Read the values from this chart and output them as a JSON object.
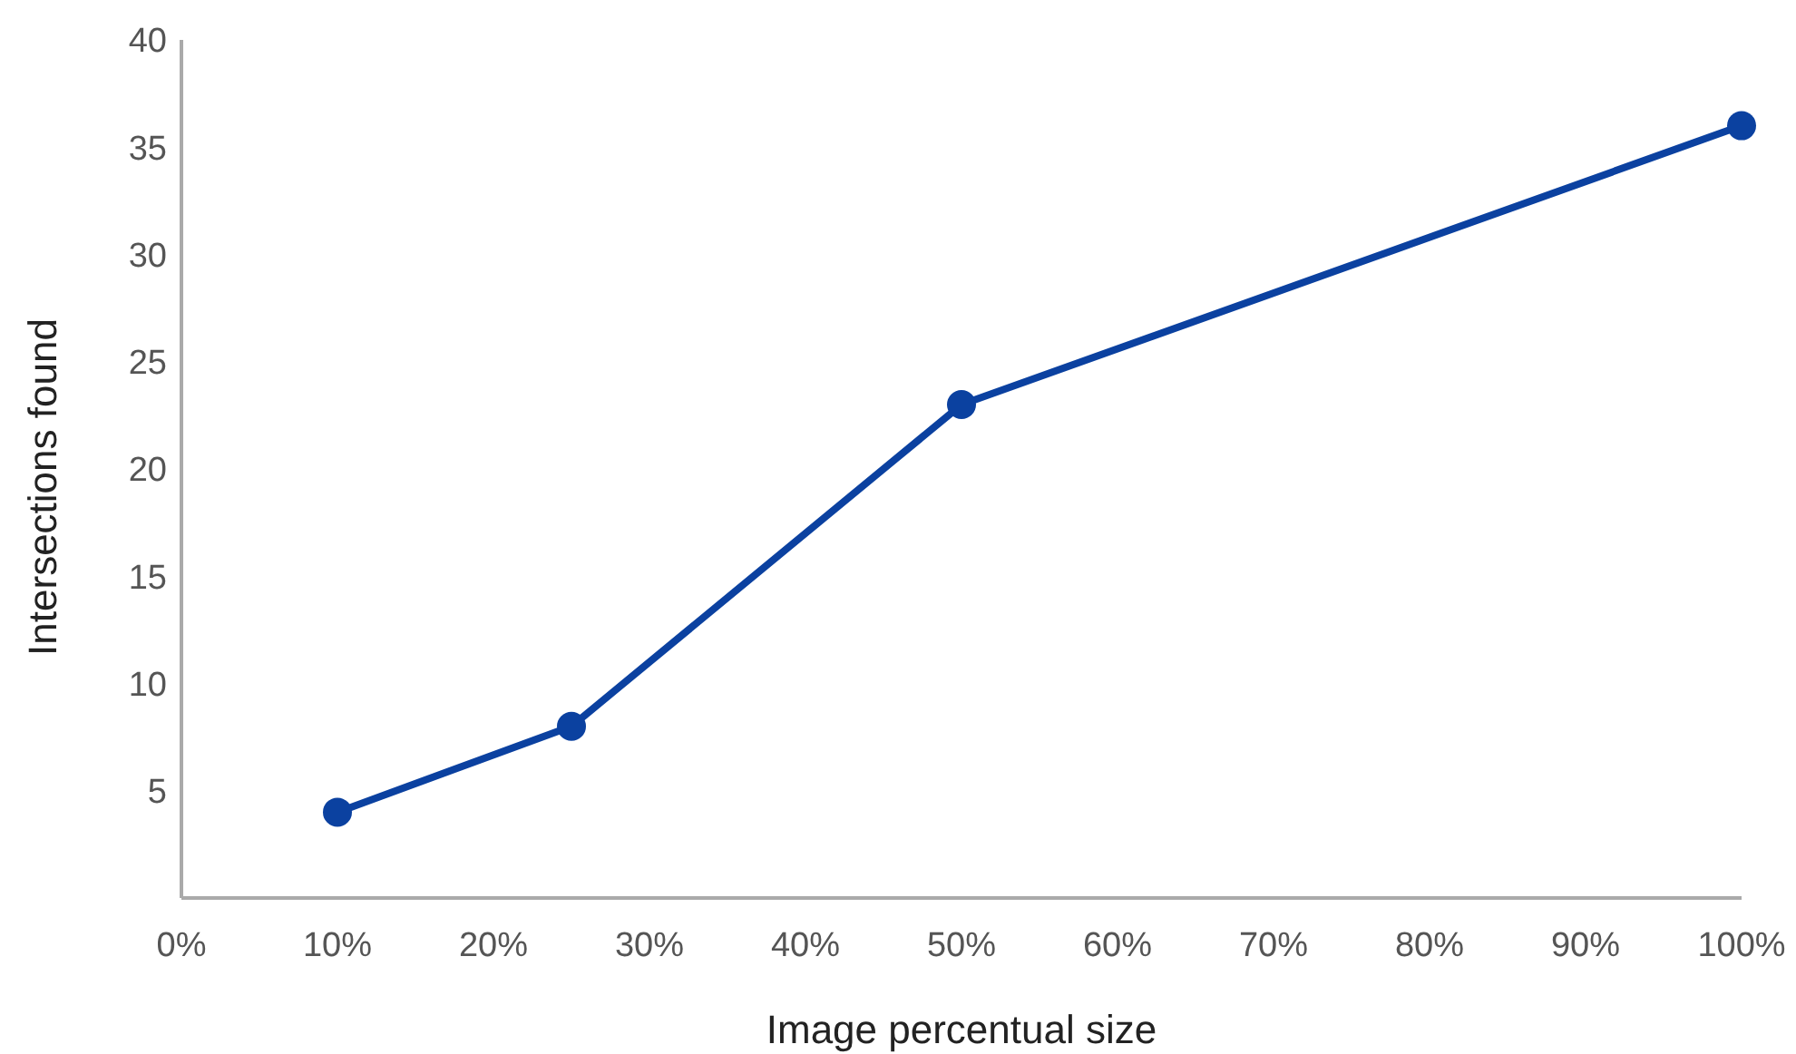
{
  "chart_data": {
    "type": "line",
    "xlabel": "Image percentual size",
    "ylabel": "Intersections found",
    "x": [
      10,
      25,
      50,
      100
    ],
    "series": [
      {
        "color": "#0b41a0",
        "values": [
          4,
          8,
          23,
          36
        ]
      }
    ],
    "xlim": [
      0,
      100
    ],
    "xticks": [
      {
        "value": 0,
        "label": "0%"
      },
      {
        "value": 10,
        "label": "10%"
      },
      {
        "value": 20,
        "label": "20%"
      },
      {
        "value": 30,
        "label": "30%"
      },
      {
        "value": 40,
        "label": "40%"
      },
      {
        "value": 50,
        "label": "50%"
      },
      {
        "value": 60,
        "label": "60%"
      },
      {
        "value": 70,
        "label": "70%"
      },
      {
        "value": 80,
        "label": "80%"
      },
      {
        "value": 90,
        "label": "90%"
      },
      {
        "value": 100,
        "label": "100%"
      }
    ],
    "ylim": [
      0,
      40
    ],
    "yticks": [
      5,
      10,
      15,
      20,
      25,
      30,
      35,
      40
    ],
    "grid": false,
    "marker": "circle",
    "line_style": "solid"
  }
}
